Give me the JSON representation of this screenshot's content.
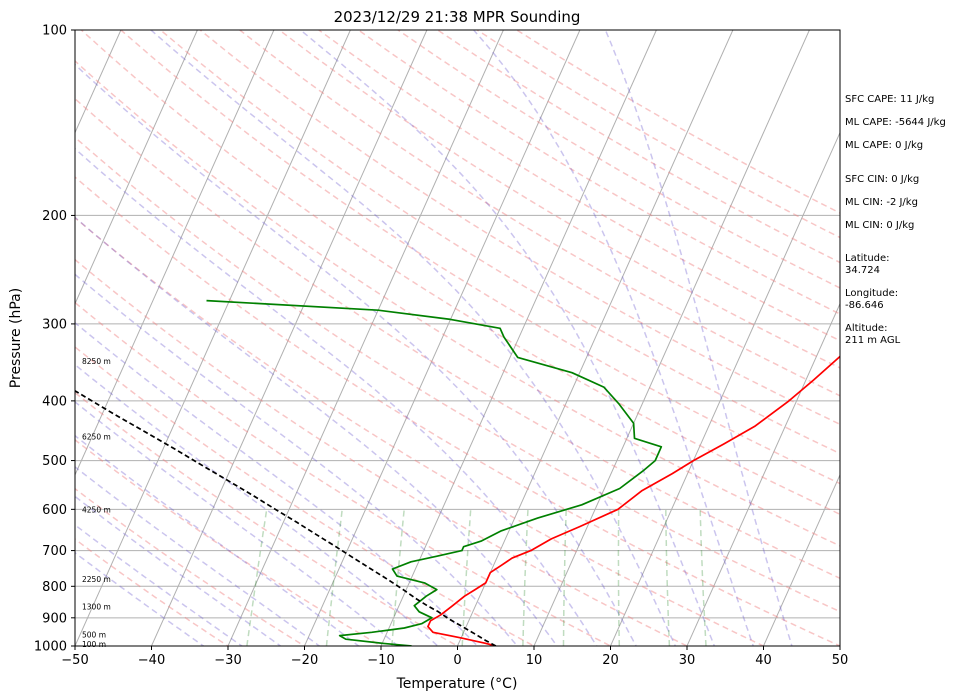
{
  "chart_data": {
    "type": "line",
    "title": "2023/12/29 21:38 MPR Sounding",
    "xlabel": "Temperature (°C)",
    "ylabel": "Pressure (hPa)",
    "xlim": [
      -50,
      50
    ],
    "ylim": [
      1000,
      100
    ],
    "y_scale": "log",
    "x_ticks": [
      -50,
      -40,
      -30,
      -20,
      -10,
      0,
      10,
      20,
      30,
      40,
      50
    ],
    "y_ticks": [
      100,
      200,
      300,
      400,
      500,
      600,
      700,
      800,
      900,
      1000
    ],
    "grid": true,
    "skew": "skew-T log-p",
    "height_labels": [
      {
        "p": 995,
        "text": "100 m"
      },
      {
        "p": 960,
        "text": "500 m"
      },
      {
        "p": 865,
        "text": "1300 m"
      },
      {
        "p": 780,
        "text": "2250 m"
      },
      {
        "p": 602,
        "text": "4250 m"
      },
      {
        "p": 458,
        "text": "6250 m"
      },
      {
        "p": 345,
        "text": "8250 m"
      }
    ],
    "info": {
      "cape": [
        "SFC CAPE: 11 J/kg",
        "ML CAPE: -5644 J/kg",
        "ML CAPE: 0 J/kg"
      ],
      "cin": [
        "SFC CIN: 0 J/kg",
        "ML CIN: -2 J/kg",
        "ML CIN: 0 J/kg"
      ],
      "lat_label": "Latitude:",
      "lat_value": "34.724",
      "lon_label": "Longitude:",
      "lon_value": "-86.646",
      "alt_label": "Altitude:",
      "alt_value": "211 m AGL"
    },
    "series": [
      {
        "color": "#ff0000",
        "points": [
          [
            1000,
            5
          ],
          [
            990,
            3.5
          ],
          [
            970,
            0
          ],
          [
            950,
            -4
          ],
          [
            930,
            -5
          ],
          [
            910,
            -5
          ],
          [
            890,
            -4
          ],
          [
            860,
            -3
          ],
          [
            830,
            -2
          ],
          [
            810,
            -1
          ],
          [
            790,
            0
          ],
          [
            760,
            0
          ],
          [
            740,
            1
          ],
          [
            720,
            2
          ],
          [
            700,
            4
          ],
          [
            670,
            6
          ],
          [
            640,
            9
          ],
          [
            600,
            13
          ],
          [
            560,
            15
          ],
          [
            525,
            18
          ],
          [
            500,
            20
          ],
          [
            470,
            23
          ],
          [
            440,
            26
          ],
          [
            400,
            29
          ],
          [
            370,
            31
          ],
          [
            340,
            33
          ],
          [
            310,
            35
          ],
          [
            290,
            37
          ],
          [
            275,
            38
          ],
          [
            258,
            38
          ]
        ]
      },
      {
        "color": "#008000",
        "points": [
          [
            1000,
            -6
          ],
          [
            990,
            -10
          ],
          [
            975,
            -15
          ],
          [
            962,
            -16
          ],
          [
            950,
            -12
          ],
          [
            935,
            -8
          ],
          [
            920,
            -6
          ],
          [
            900,
            -5
          ],
          [
            880,
            -7
          ],
          [
            860,
            -8
          ],
          [
            830,
            -7
          ],
          [
            810,
            -6
          ],
          [
            790,
            -8
          ],
          [
            770,
            -12
          ],
          [
            750,
            -13
          ],
          [
            730,
            -11
          ],
          [
            715,
            -8
          ],
          [
            700,
            -5
          ],
          [
            690,
            -5
          ],
          [
            675,
            -3
          ],
          [
            650,
            -1
          ],
          [
            620,
            3
          ],
          [
            590,
            8
          ],
          [
            555,
            12
          ],
          [
            520,
            14
          ],
          [
            500,
            15
          ],
          [
            475,
            15
          ],
          [
            460,
            11
          ],
          [
            435,
            10
          ],
          [
            405,
            7
          ],
          [
            380,
            4
          ],
          [
            360,
            -1
          ],
          [
            340,
            -9
          ],
          [
            315,
            -12
          ],
          [
            305,
            -13
          ],
          [
            295,
            -20
          ],
          [
            285,
            -30
          ],
          [
            275,
            -53
          ]
        ]
      },
      {
        "color": "#000000",
        "dashed": true,
        "points": [
          [
            1000,
            5
          ],
          [
            980,
            3.4
          ],
          [
            955,
            1.5
          ],
          [
            930,
            -0.5
          ],
          [
            905,
            -2.6
          ],
          [
            880,
            -4.5
          ],
          [
            860,
            -6.3
          ],
          [
            840,
            -8
          ],
          [
            810,
            -10.4
          ],
          [
            780,
            -13
          ],
          [
            750,
            -15.8
          ],
          [
            720,
            -18.7
          ],
          [
            690,
            -21.7
          ],
          [
            660,
            -24.9
          ],
          [
            630,
            -28.2
          ],
          [
            600,
            -31.8
          ],
          [
            570,
            -35.5
          ],
          [
            540,
            -39.5
          ],
          [
            510,
            -43.8
          ],
          [
            480,
            -48.3
          ],
          [
            450,
            -53.2
          ],
          [
            420,
            -58.5
          ],
          [
            390,
            -64
          ],
          [
            360,
            -70
          ],
          [
            330,
            -76
          ],
          [
            300,
            -82
          ],
          [
            280,
            -86
          ],
          [
            265,
            -89
          ]
        ]
      }
    ]
  }
}
